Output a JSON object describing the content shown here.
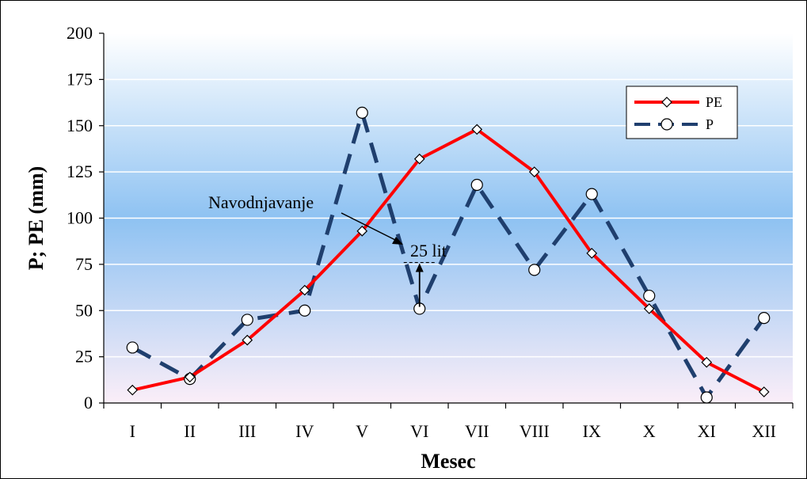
{
  "chart_data": {
    "type": "line",
    "xlabel": "Mesec",
    "ylabel": "P; PE (mm)",
    "categories": [
      "I",
      "II",
      "III",
      "IV",
      "V",
      "VI",
      "VII",
      "VIII",
      "IX",
      "X",
      "XI",
      "XII"
    ],
    "ylim": [
      0,
      200
    ],
    "yticks": [
      0,
      25,
      50,
      75,
      100,
      125,
      150,
      175,
      200
    ],
    "grid": "horizontal",
    "legend_position": "top-right",
    "series": [
      {
        "name": "PE",
        "values": [
          7,
          14,
          34,
          61,
          93,
          132,
          148,
          125,
          81,
          51,
          22,
          6
        ],
        "color": "#ff0000",
        "marker": "diamond",
        "style": "solid"
      },
      {
        "name": "P",
        "values": [
          30,
          13,
          45,
          50,
          157,
          51,
          118,
          72,
          113,
          58,
          3,
          46
        ],
        "color": "#1f3f6e",
        "marker": "circle",
        "style": "dashed"
      }
    ],
    "annotations": {
      "irrigation_label": "Navodnjavanje",
      "amount_label": "25 lit"
    }
  }
}
